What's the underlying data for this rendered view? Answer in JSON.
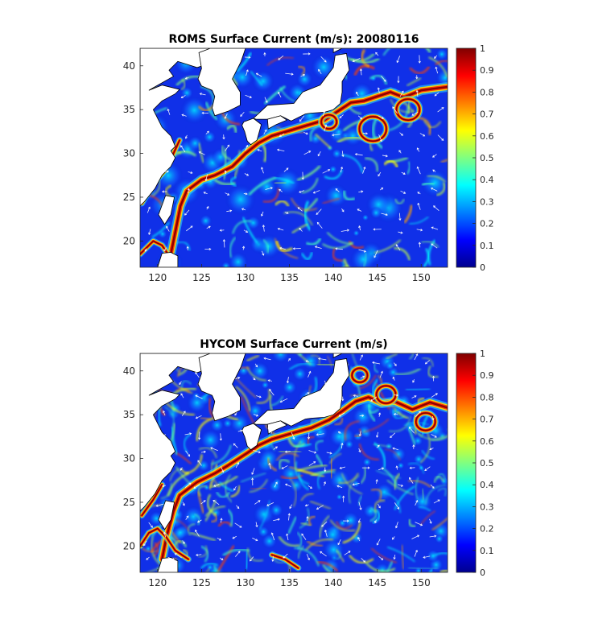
{
  "colormap": "jet",
  "panels": [
    {
      "title": "ROMS Surface Current (m/s): 20080116",
      "model": "ROMS",
      "xlim": [
        118,
        153
      ],
      "ylim": [
        17,
        42
      ],
      "xticks": [
        "120",
        "125",
        "130",
        "135",
        "140",
        "145",
        "150"
      ],
      "yticks": [
        "20",
        "25",
        "30",
        "35",
        "40"
      ],
      "colorbar": {
        "min": 0,
        "max": 1,
        "ticks": [
          "0",
          "0.1",
          "0.2",
          "0.3",
          "0.4",
          "0.5",
          "0.6",
          "0.7",
          "0.8",
          "0.9",
          "1"
        ]
      }
    },
    {
      "title": "HYCOM Surface Current (m/s)",
      "model": "HYCOM",
      "xlim": [
        118,
        153
      ],
      "ylim": [
        17,
        42
      ],
      "xticks": [
        "120",
        "125",
        "130",
        "135",
        "140",
        "145",
        "150"
      ],
      "yticks": [
        "20",
        "25",
        "30",
        "35",
        "40"
      ],
      "colorbar": {
        "min": 0,
        "max": 1,
        "ticks": [
          "0",
          "0.1",
          "0.2",
          "0.3",
          "0.4",
          "0.5",
          "0.6",
          "0.7",
          "0.8",
          "0.9",
          "1"
        ]
      }
    }
  ]
}
